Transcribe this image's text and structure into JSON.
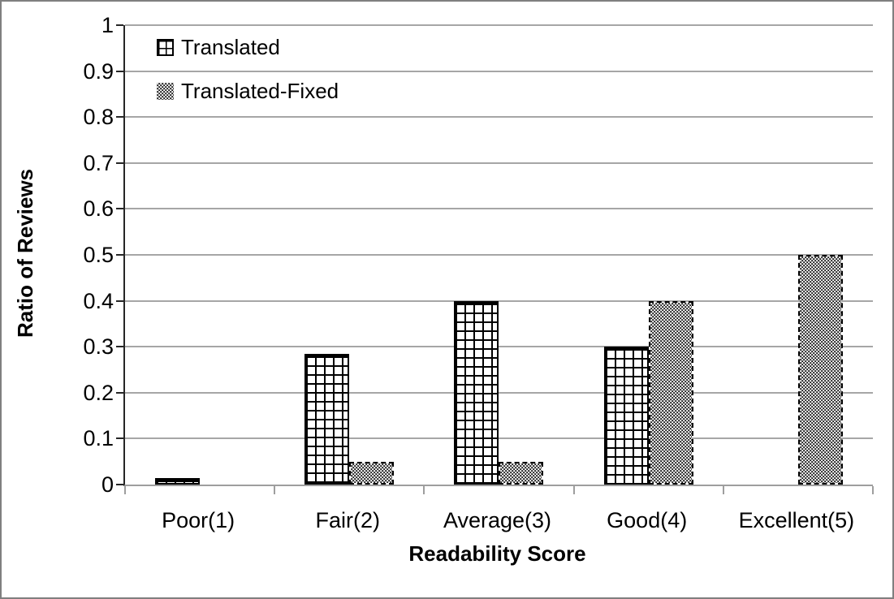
{
  "chart_data": {
    "type": "bar",
    "title": "",
    "categories": [
      "Poor(1)",
      "Fair(2)",
      "Average(3)",
      "Good(4)",
      "Excellent(5)"
    ],
    "series": [
      {
        "name": "Translated",
        "pattern": "grid",
        "values": [
          0.015,
          0.285,
          0.4,
          0.3,
          0
        ]
      },
      {
        "name": "Translated-Fixed",
        "pattern": "dots",
        "values": [
          0,
          0.05,
          0.05,
          0.4,
          0.5
        ]
      }
    ],
    "xlabel": "Readability Score",
    "ylabel": "Ratio of Reviews",
    "ylim": [
      0,
      1
    ],
    "ytick_step": 0.1,
    "yticks": [
      "1",
      "0.9",
      "0.8",
      "0.7",
      "0.6",
      "0.5",
      "0.4",
      "0.3",
      "0.2",
      "0.1",
      "0"
    ],
    "grid": "horizontal-gray",
    "legend_position": "top-left-inside",
    "colors": {
      "bar_grid_pattern": "#000000",
      "bar_dots_fill": "#0d0d0d",
      "gridline": "#a6a6a6",
      "y_axis_line": "#262626",
      "x_axis_line": "#9e9e9e",
      "figure_border": "#7f7f7f",
      "text": "#000000",
      "background": "#ffffff"
    }
  }
}
